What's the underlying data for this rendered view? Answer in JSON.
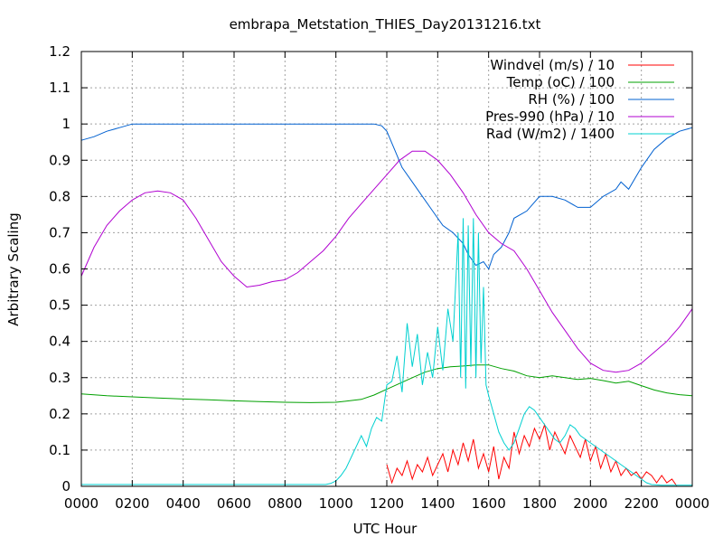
{
  "chart_data": {
    "type": "line",
    "title": "embrapa_Metstation_THIES_Day20131216.txt",
    "xlabel": "UTC Hour",
    "ylabel": "Arbitrary Scaling",
    "ylim": [
      0,
      1.2
    ],
    "xlim": [
      0,
      24
    ],
    "grid": true,
    "legend_position": "top-right",
    "x_ticks": [
      {
        "value": 0,
        "label": "0000"
      },
      {
        "value": 2,
        "label": "0200"
      },
      {
        "value": 4,
        "label": "0400"
      },
      {
        "value": 6,
        "label": "0600"
      },
      {
        "value": 8,
        "label": "0800"
      },
      {
        "value": 10,
        "label": "1000"
      },
      {
        "value": 12,
        "label": "1200"
      },
      {
        "value": 14,
        "label": "1400"
      },
      {
        "value": 16,
        "label": "1600"
      },
      {
        "value": 18,
        "label": "1800"
      },
      {
        "value": 20,
        "label": "2000"
      },
      {
        "value": 22,
        "label": "2200"
      },
      {
        "value": 24,
        "label": "0000"
      }
    ],
    "y_ticks": [
      {
        "value": 0,
        "label": "0"
      },
      {
        "value": 0.1,
        "label": "0.1"
      },
      {
        "value": 0.2,
        "label": "0.2"
      },
      {
        "value": 0.3,
        "label": "0.3"
      },
      {
        "value": 0.4,
        "label": "0.4"
      },
      {
        "value": 0.5,
        "label": "0.5"
      },
      {
        "value": 0.6,
        "label": "0.6"
      },
      {
        "value": 0.7,
        "label": "0.7"
      },
      {
        "value": 0.8,
        "label": "0.8"
      },
      {
        "value": 0.9,
        "label": "0.9"
      },
      {
        "value": 1,
        "label": "1"
      },
      {
        "value": 1.1,
        "label": "1.1"
      },
      {
        "value": 1.2,
        "label": "1.2"
      }
    ],
    "series": [
      {
        "name": "Windvel (m/s) / 10",
        "color": "#ff0000",
        "x": [
          12.0,
          12.2,
          12.4,
          12.6,
          12.8,
          13.0,
          13.2,
          13.4,
          13.6,
          13.8,
          14.0,
          14.2,
          14.4,
          14.6,
          14.8,
          15.0,
          15.2,
          15.4,
          15.6,
          15.8,
          16.0,
          16.2,
          16.4,
          16.6,
          16.8,
          17.0,
          17.2,
          17.4,
          17.6,
          17.8,
          18.0,
          18.2,
          18.4,
          18.6,
          18.8,
          19.0,
          19.2,
          19.4,
          19.6,
          19.8,
          20.0,
          20.2,
          20.4,
          20.6,
          20.8,
          21.0,
          21.2,
          21.4,
          21.6,
          21.8,
          22.0,
          22.2,
          22.4,
          22.6,
          22.8,
          23.0,
          23.2,
          23.4
        ],
        "y": [
          0.06,
          0.01,
          0.05,
          0.03,
          0.07,
          0.02,
          0.06,
          0.04,
          0.08,
          0.03,
          0.06,
          0.09,
          0.04,
          0.1,
          0.06,
          0.12,
          0.07,
          0.13,
          0.05,
          0.09,
          0.04,
          0.11,
          0.02,
          0.08,
          0.05,
          0.15,
          0.09,
          0.14,
          0.11,
          0.16,
          0.13,
          0.17,
          0.1,
          0.15,
          0.12,
          0.09,
          0.14,
          0.11,
          0.08,
          0.13,
          0.07,
          0.11,
          0.05,
          0.09,
          0.04,
          0.07,
          0.03,
          0.05,
          0.03,
          0.04,
          0.02,
          0.04,
          0.03,
          0.01,
          0.03,
          0.01,
          0.02,
          0.0
        ]
      },
      {
        "name": "Temp (oC) / 100",
        "color": "#00a000",
        "x": [
          0,
          1,
          2,
          3,
          4,
          5,
          6,
          7,
          8,
          9,
          10,
          11,
          11.5,
          12,
          12.5,
          13,
          13.5,
          14,
          14.5,
          15,
          15.5,
          16,
          16.5,
          17,
          17.5,
          18,
          18.5,
          19,
          19.5,
          20,
          20.5,
          21,
          21.5,
          22,
          22.5,
          23,
          23.5,
          24
        ],
        "y": [
          0.255,
          0.25,
          0.247,
          0.244,
          0.241,
          0.239,
          0.236,
          0.234,
          0.232,
          0.231,
          0.232,
          0.24,
          0.252,
          0.268,
          0.284,
          0.3,
          0.315,
          0.325,
          0.33,
          0.332,
          0.335,
          0.335,
          0.325,
          0.318,
          0.305,
          0.3,
          0.305,
          0.3,
          0.295,
          0.298,
          0.292,
          0.285,
          0.29,
          0.278,
          0.266,
          0.258,
          0.253,
          0.25
        ]
      },
      {
        "name": "RH (%) / 100",
        "color": "#0060d0",
        "x": [
          0,
          0.5,
          1,
          1.5,
          2,
          3,
          4,
          5,
          6,
          7,
          8,
          9,
          10,
          11,
          11.5,
          11.8,
          12,
          12.3,
          12.6,
          13,
          13.4,
          13.8,
          14.2,
          14.6,
          15,
          15.2,
          15.5,
          15.8,
          16,
          16.2,
          16.5,
          16.8,
          17,
          17.5,
          18,
          18.5,
          19,
          19.5,
          20,
          20.5,
          21,
          21.2,
          21.5,
          22,
          22.5,
          23,
          23.5,
          24
        ],
        "y": [
          0.955,
          0.965,
          0.98,
          0.99,
          1.0,
          1.0,
          1.0,
          1.0,
          1.0,
          1.0,
          1.0,
          1.0,
          1.0,
          1.0,
          1.0,
          0.995,
          0.98,
          0.93,
          0.88,
          0.84,
          0.8,
          0.76,
          0.72,
          0.7,
          0.67,
          0.64,
          0.61,
          0.62,
          0.6,
          0.64,
          0.66,
          0.7,
          0.74,
          0.76,
          0.8,
          0.8,
          0.79,
          0.77,
          0.77,
          0.8,
          0.82,
          0.84,
          0.82,
          0.88,
          0.93,
          0.96,
          0.98,
          0.99
        ]
      },
      {
        "name": "Pres-990 (hPa) / 10",
        "color": "#b000d0",
        "x": [
          0,
          0.5,
          1,
          1.5,
          2,
          2.5,
          3,
          3.5,
          4,
          4.5,
          5,
          5.5,
          6,
          6.5,
          7,
          7.5,
          8,
          8.5,
          9,
          9.5,
          10,
          10.5,
          11,
          11.5,
          12,
          12.5,
          13,
          13.5,
          14,
          14.5,
          15,
          15.5,
          16,
          16.5,
          17,
          17.5,
          18,
          18.5,
          19,
          19.5,
          20,
          20.5,
          21,
          21.5,
          22,
          22.5,
          23,
          23.5,
          24
        ],
        "y": [
          0.58,
          0.66,
          0.72,
          0.76,
          0.79,
          0.81,
          0.815,
          0.81,
          0.79,
          0.74,
          0.68,
          0.62,
          0.58,
          0.55,
          0.555,
          0.565,
          0.57,
          0.59,
          0.62,
          0.65,
          0.69,
          0.74,
          0.78,
          0.82,
          0.86,
          0.9,
          0.925,
          0.925,
          0.9,
          0.86,
          0.81,
          0.75,
          0.7,
          0.67,
          0.65,
          0.6,
          0.54,
          0.48,
          0.43,
          0.38,
          0.34,
          0.32,
          0.315,
          0.32,
          0.34,
          0.37,
          0.4,
          0.44,
          0.49
        ]
      },
      {
        "name": "Rad (W/m2) / 1400",
        "color": "#00d0d0",
        "x": [
          0,
          9.6,
          9.8,
          10.0,
          10.2,
          10.4,
          10.6,
          10.8,
          11.0,
          11.2,
          11.4,
          11.6,
          11.8,
          12.0,
          12.2,
          12.4,
          12.6,
          12.8,
          13.0,
          13.2,
          13.4,
          13.6,
          13.8,
          14.0,
          14.2,
          14.4,
          14.6,
          14.8,
          14.9,
          15.0,
          15.1,
          15.2,
          15.3,
          15.4,
          15.5,
          15.6,
          15.7,
          15.8,
          15.9,
          16.0,
          16.2,
          16.4,
          16.6,
          16.8,
          17.0,
          17.2,
          17.4,
          17.6,
          17.8,
          18.0,
          18.2,
          18.4,
          18.6,
          18.8,
          19.0,
          19.2,
          19.4,
          19.6,
          19.8,
          20.0,
          20.2,
          20.4,
          20.6,
          20.8,
          21.0,
          21.2,
          21.4,
          21.6,
          21.8,
          22.0,
          22.2,
          22.4,
          22.6,
          22.8,
          23.0,
          24.0
        ],
        "y": [
          0.005,
          0.005,
          0.008,
          0.015,
          0.03,
          0.05,
          0.08,
          0.11,
          0.14,
          0.11,
          0.16,
          0.19,
          0.18,
          0.28,
          0.29,
          0.36,
          0.26,
          0.45,
          0.33,
          0.42,
          0.28,
          0.37,
          0.3,
          0.44,
          0.32,
          0.49,
          0.4,
          0.7,
          0.3,
          0.74,
          0.27,
          0.72,
          0.33,
          0.74,
          0.3,
          0.7,
          0.34,
          0.55,
          0.28,
          0.25,
          0.2,
          0.15,
          0.12,
          0.1,
          0.12,
          0.16,
          0.2,
          0.22,
          0.21,
          0.19,
          0.17,
          0.15,
          0.13,
          0.12,
          0.14,
          0.17,
          0.16,
          0.14,
          0.13,
          0.12,
          0.11,
          0.1,
          0.09,
          0.08,
          0.07,
          0.06,
          0.05,
          0.04,
          0.03,
          0.02,
          0.01,
          0.005,
          0.004,
          0.003,
          0.003,
          0.003
        ]
      }
    ]
  }
}
